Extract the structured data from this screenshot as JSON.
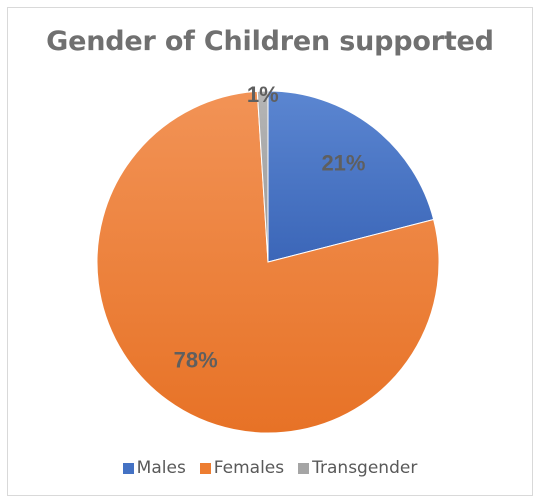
{
  "chart_data": {
    "type": "pie",
    "title": "Gender of Children supported",
    "categories": [
      "Males",
      "Females",
      "Transgender"
    ],
    "values": [
      21,
      78,
      1
    ],
    "labels": [
      "21%",
      "78%",
      "1%"
    ],
    "colors": [
      "#4472c4",
      "#ed7d31",
      "#a5a5a5"
    ],
    "legend_position": "bottom"
  }
}
